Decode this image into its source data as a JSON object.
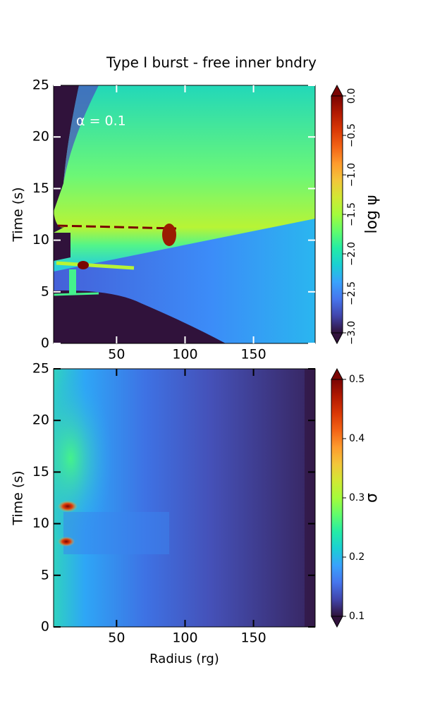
{
  "title": "Type I burst - free inner bndry",
  "chart_data": [
    {
      "type": "heatmap",
      "ylabel": "Time (s)",
      "annotation": "α = 0.1",
      "xlim": [
        4,
        195
      ],
      "xticks": [
        50,
        100,
        150
      ],
      "ylim": [
        0,
        25
      ],
      "yticks": [
        0,
        5,
        10,
        15,
        20,
        25
      ],
      "tick_color": "#ffffff",
      "colorbar": {
        "label": "log ψ",
        "colormap": "turbo",
        "lim": [
          -3,
          0
        ],
        "label_rotation": 90,
        "ticks": [
          {
            "value": -3,
            "label": "−3.0"
          },
          {
            "value": -2.5,
            "label": "−2.5"
          },
          {
            "value": -2,
            "label": "−2.0"
          },
          {
            "value": -1.5,
            "label": "−1.5"
          },
          {
            "value": -1,
            "label": "−1.0"
          },
          {
            "value": -0.5,
            "label": "−0.5"
          },
          {
            "value": 0,
            "label": "0.0"
          }
        ]
      }
    },
    {
      "type": "heatmap",
      "ylabel": "Time (s)",
      "xlabel": "Radius (rg)",
      "xlim": [
        4,
        195
      ],
      "xticks": [
        50,
        100,
        150
      ],
      "ylim": [
        0,
        25
      ],
      "yticks": [
        0,
        5,
        10,
        15,
        20,
        25
      ],
      "tick_color": "#000000",
      "colorbar": {
        "label": "σ",
        "colormap": "turbo",
        "lim": [
          0.1,
          0.5
        ],
        "label_rotation": 0,
        "ticks": [
          0.1,
          0.2,
          0.3,
          0.4,
          0.5
        ]
      }
    }
  ]
}
